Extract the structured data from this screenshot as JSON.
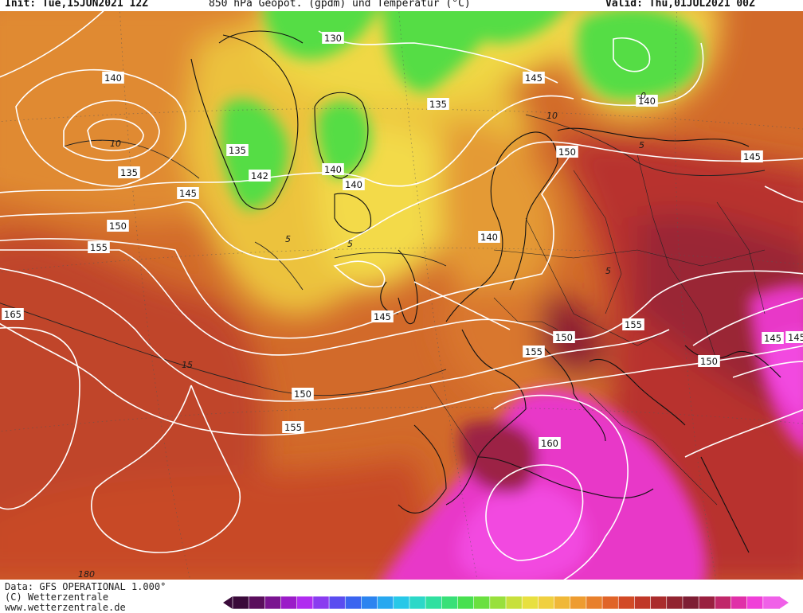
{
  "header": {
    "init": "Init: Tue,15JUN2021 12Z",
    "title": "850 hPa Geopot. (gpdm) und Temperatur (°C)",
    "valid": "Valid: Thu,01JUL2021 00Z"
  },
  "footer": {
    "source": "Data: GFS OPERATIONAL 1.000°",
    "copyright": "(C) Wetterzentrale",
    "website": "www.wetterzentrale.de"
  },
  "colors": {
    "green": "#55dd44",
    "yellow": "#f0dc45",
    "orange": "#e8922c",
    "red_orange": "#d85a20",
    "red": "#c0392f",
    "dark_red": "#8e1f32",
    "magenta": "#e035c0",
    "pink": "#f040d8"
  },
  "colorbar": [
    "#3a0a3a",
    "#5a0e5c",
    "#7a1490",
    "#9b1cc8",
    "#b02cf0",
    "#8a3cf0",
    "#5a4cf0",
    "#3a64f0",
    "#2c84f0",
    "#28a8f0",
    "#28c8e8",
    "#2cd8c8",
    "#30e0a0",
    "#38e078",
    "#48e050",
    "#6ae040",
    "#98e03c",
    "#c8e03c",
    "#e8e040",
    "#f0d040",
    "#f0b838",
    "#ee9c30",
    "#e8802c",
    "#e06428",
    "#d24a26",
    "#c03828",
    "#aa2c2c",
    "#922430",
    "#7e1e34",
    "#9a2040",
    "#c0286a",
    "#e030a8",
    "#f040d8",
    "#f060e8"
  ],
  "contour_labels": [
    "130",
    "135",
    "135",
    "135",
    "140",
    "140",
    "140",
    "140",
    "140",
    "145",
    "145",
    "145",
    "145",
    "145",
    "150",
    "150",
    "150",
    "150",
    "150",
    "155",
    "155",
    "155",
    "155",
    "160",
    "165",
    "142",
    "145"
  ],
  "isotherm_labels": [
    "10",
    "10",
    "5",
    "5",
    "5",
    "-0",
    "15",
    "5",
    "180"
  ]
}
